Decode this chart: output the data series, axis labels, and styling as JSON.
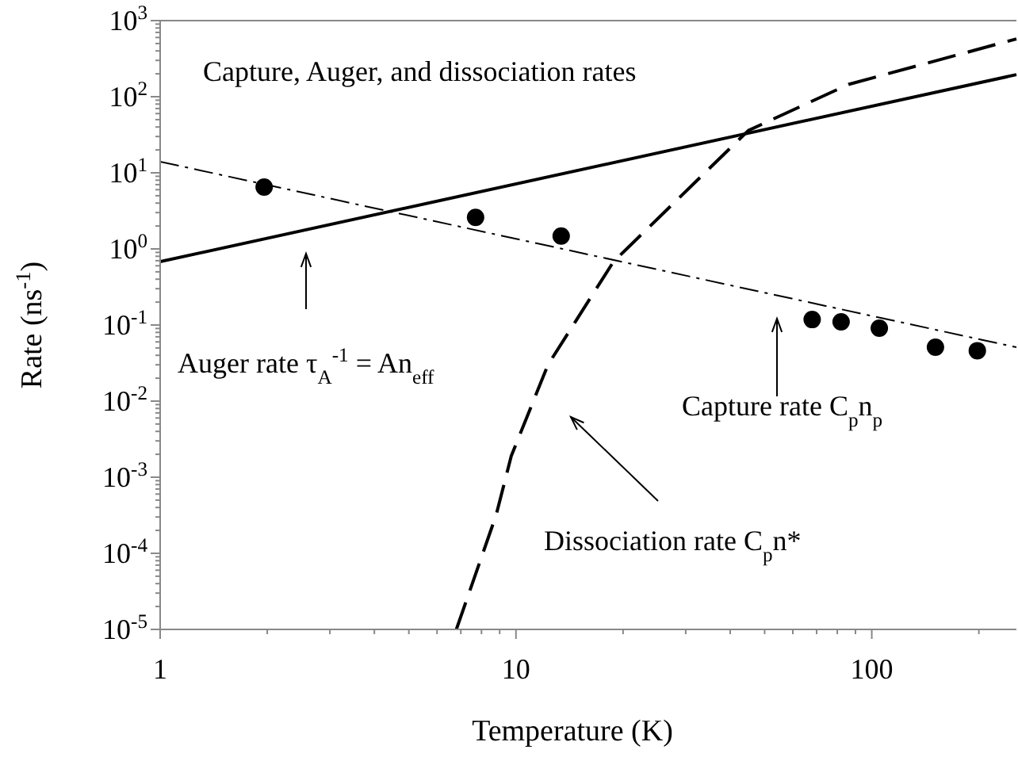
{
  "chart_data": {
    "type": "line",
    "title": "Capture, Auger, and dissociation rates",
    "xlabel": "Temperature (K)",
    "ylabel": "Rate (ns$^{-1}$)",
    "log": "xy",
    "xlim": [
      1,
      255
    ],
    "ylim": [
      1e-05,
      1000
    ],
    "xticks": [
      1,
      10,
      100
    ],
    "yticks": [
      {
        "value": 1e-05,
        "label": "10$^{-5}$"
      },
      {
        "value": 0.0001,
        "label": "10$^{-4}$"
      },
      {
        "value": 0.001,
        "label": "10$^{-3}$"
      },
      {
        "value": 0.01,
        "label": "10$^{-2}$"
      },
      {
        "value": 0.1,
        "label": "10$^{-1}$"
      },
      {
        "value": 1,
        "label": "10$^{0}$"
      },
      {
        "value": 10,
        "label": "10$^{1}$"
      },
      {
        "value": 100,
        "label": "10$^{2}$"
      },
      {
        "value": 1000,
        "label": "10$^{3}$"
      }
    ],
    "grid": false,
    "series": [
      {
        "color": "#000000",
        "line_style": "solid",
        "marker": "none",
        "x": [
          1,
          255
        ],
        "values": [
          0.68,
          195
        ]
      },
      {
        "color": "#000000",
        "line_style": "dashdot",
        "marker": "none",
        "x": [
          1,
          255
        ],
        "values": [
          14,
          0.051
        ]
      },
      {
        "color": "#000000",
        "line_style": "dashed",
        "marker": "none",
        "x": [
          6.8,
          8.8,
          9.7,
          12.3,
          18.8,
          45,
          86,
          255
        ],
        "values": [
          1e-05,
          0.00032,
          0.0019,
          0.03,
          0.68,
          36,
          145,
          575
        ]
      },
      {
        "type": "scatter",
        "color": "#000000",
        "marker": "circle",
        "x": [
          1.96,
          7.7,
          13.4,
          68,
          82,
          105,
          151,
          198
        ],
        "values": [
          6.5,
          2.6,
          1.48,
          0.118,
          0.11,
          0.091,
          0.051,
          0.046
        ]
      }
    ],
    "annotations": [
      "Auger rate   τ$_{A}$$^{-1}$ = An$_{eff}$",
      "Capture rate   C$_{p}$n$_{p}$",
      "Dissociation rate   C$_{p}$n*"
    ]
  }
}
